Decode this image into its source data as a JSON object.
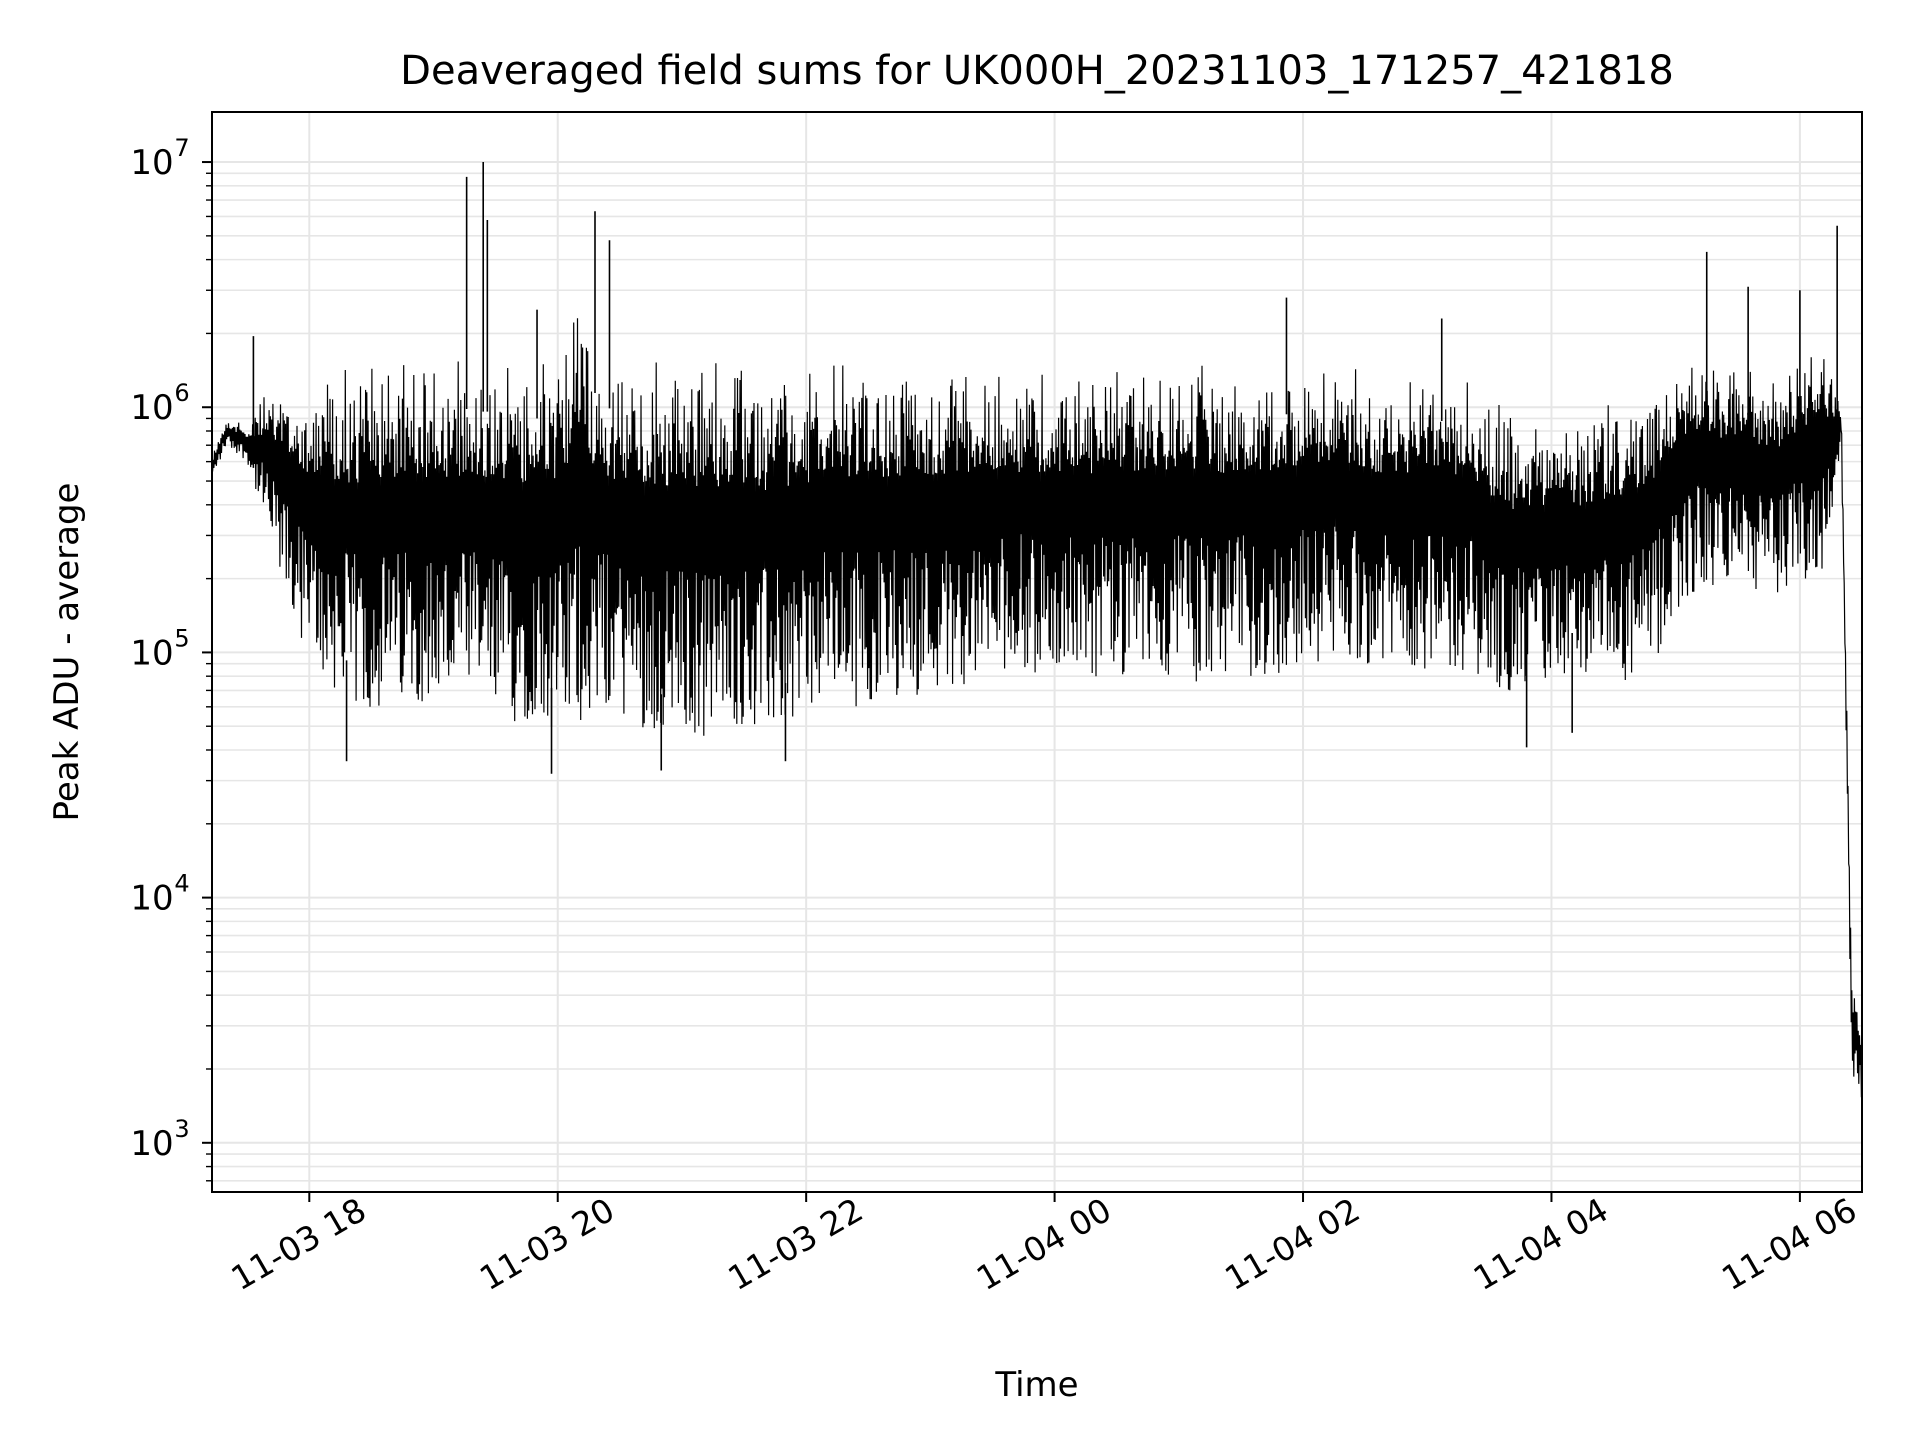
{
  "chart_data": {
    "type": "line",
    "title": "Deaveraged field sums for UK000H_20231103_171257_421818",
    "xlabel": "Time",
    "ylabel": "Peak ADU - average",
    "yscale": "log",
    "xlim": [
      "2023-11-03 17:13",
      "2023-11-04 06:30"
    ],
    "ylim": [
      630,
      16000000
    ],
    "grid": true,
    "line_color": "#000000",
    "grid_color": "#e6e6e6",
    "x_ticks": [
      {
        "value": "2023-11-03 18:00",
        "label": "11-03 18"
      },
      {
        "value": "2023-11-03 20:00",
        "label": "11-03 20"
      },
      {
        "value": "2023-11-03 22:00",
        "label": "11-03 22"
      },
      {
        "value": "2023-11-04 00:00",
        "label": "11-04 00"
      },
      {
        "value": "2023-11-04 02:00",
        "label": "11-04 02"
      },
      {
        "value": "2023-11-04 04:00",
        "label": "11-04 04"
      },
      {
        "value": "2023-11-04 06:00",
        "label": "11-04 06"
      }
    ],
    "y_ticks": [
      {
        "value": 1000,
        "base": "10",
        "exp": "3"
      },
      {
        "value": 10000,
        "base": "10",
        "exp": "4"
      },
      {
        "value": 100000,
        "base": "10",
        "exp": "5"
      },
      {
        "value": 1000000,
        "base": "10",
        "exp": "6"
      },
      {
        "value": 10000000,
        "base": "10",
        "exp": "7"
      }
    ],
    "series": [
      {
        "name": "",
        "x": [
          "2023-11-03 17:13",
          "2023-11-03 17:20",
          "2023-11-03 17:30",
          "2023-11-03 17:40",
          "2023-11-03 17:50",
          "2023-11-03 18:00",
          "2023-11-03 18:10",
          "2023-11-03 18:20",
          "2023-11-03 18:30",
          "2023-11-03 18:40",
          "2023-11-03 18:50",
          "2023-11-03 19:00",
          "2023-11-03 19:10",
          "2023-11-03 19:20",
          "2023-11-03 19:30",
          "2023-11-03 19:40",
          "2023-11-03 19:50",
          "2023-11-03 20:00",
          "2023-11-03 20:10",
          "2023-11-03 20:20",
          "2023-11-03 20:30",
          "2023-11-03 20:40",
          "2023-11-03 20:50",
          "2023-11-03 21:00",
          "2023-11-03 21:10",
          "2023-11-03 21:20",
          "2023-11-03 21:30",
          "2023-11-03 21:40",
          "2023-11-03 21:50",
          "2023-11-03 22:00",
          "2023-11-03 22:10",
          "2023-11-03 22:20",
          "2023-11-03 22:30",
          "2023-11-03 22:40",
          "2023-11-03 22:50",
          "2023-11-03 23:00",
          "2023-11-03 23:10",
          "2023-11-03 23:20",
          "2023-11-03 23:30",
          "2023-11-03 23:40",
          "2023-11-03 23:50",
          "2023-11-04 00:00",
          "2023-11-04 00:10",
          "2023-11-04 00:20",
          "2023-11-04 00:30",
          "2023-11-04 00:40",
          "2023-11-04 00:50",
          "2023-11-04 01:00",
          "2023-11-04 01:10",
          "2023-11-04 01:20",
          "2023-11-04 01:30",
          "2023-11-04 01:40",
          "2023-11-04 01:50",
          "2023-11-04 02:00",
          "2023-11-04 02:10",
          "2023-11-04 02:20",
          "2023-11-04 02:30",
          "2023-11-04 02:40",
          "2023-11-04 02:50",
          "2023-11-04 03:00",
          "2023-11-04 03:10",
          "2023-11-04 03:20",
          "2023-11-04 03:30",
          "2023-11-04 03:40",
          "2023-11-04 03:50",
          "2023-11-04 04:00",
          "2023-11-04 04:10",
          "2023-11-04 04:20",
          "2023-11-04 04:30",
          "2023-11-04 04:40",
          "2023-11-04 04:50",
          "2023-11-04 05:00",
          "2023-11-04 05:10",
          "2023-11-04 05:20",
          "2023-11-04 05:30",
          "2023-11-04 05:40",
          "2023-11-04 05:50",
          "2023-11-04 06:00",
          "2023-11-04 06:10",
          "2023-11-04 06:15",
          "2023-11-04 06:20",
          "2023-11-04 06:25",
          "2023-11-04 06:30"
        ],
        "y_low": [
          500000,
          700000,
          600000,
          300000,
          150000,
          90000,
          70000,
          60000,
          55000,
          60000,
          65000,
          60000,
          60000,
          60000,
          55000,
          50000,
          55000,
          45000,
          50000,
          60000,
          55000,
          50000,
          45000,
          45000,
          45000,
          48000,
          50000,
          45000,
          50000,
          55000,
          60000,
          60000,
          60000,
          65000,
          65000,
          70000,
          70000,
          75000,
          75000,
          90000,
          80000,
          80000,
          85000,
          80000,
          75000,
          75000,
          80000,
          80000,
          75000,
          75000,
          80000,
          75000,
          80000,
          90000,
          90000,
          95000,
          90000,
          85000,
          90000,
          85000,
          80000,
          85000,
          75000,
          65000,
          70000,
          75000,
          80000,
          75000,
          70000,
          75000,
          85000,
          150000,
          170000,
          180000,
          200000,
          170000,
          170000,
          200000,
          200000,
          350000,
          700000,
          2000,
          1400
        ],
        "y_high": [
          650000,
          900000,
          850000,
          1200000,
          1300000,
          1400000,
          1500000,
          1500000,
          1600000,
          1600000,
          1600000,
          1600000,
          1700000,
          1600000,
          1600000,
          1600000,
          1500000,
          1600000,
          3000000,
          1700000,
          1600000,
          1600000,
          1600000,
          1650000,
          1600000,
          1600000,
          1600000,
          1550000,
          1600000,
          1600000,
          1550000,
          1600000,
          1600000,
          1600000,
          1550000,
          1550000,
          1500000,
          1500000,
          1500000,
          1450000,
          1400000,
          1400000,
          1450000,
          1500000,
          1500000,
          1550000,
          1550000,
          1600000,
          1600000,
          1550000,
          1550000,
          1500000,
          1550000,
          1600000,
          1600000,
          1500000,
          1500000,
          1400000,
          1400000,
          1500000,
          1450000,
          1400000,
          1100000,
          1000000,
          950000,
          900000,
          900000,
          950000,
          1100000,
          1200000,
          1300000,
          1700000,
          1800000,
          1600000,
          1600000,
          1500000,
          1400000,
          1700000,
          2000000,
          1500000,
          1000000,
          5000,
          3000
        ],
        "spikes": [
          {
            "x": "2023-11-03 17:33",
            "y": 1950000
          },
          {
            "x": "2023-11-03 19:16",
            "y": 8700000
          },
          {
            "x": "2023-11-03 19:24",
            "y": 10000000
          },
          {
            "x": "2023-11-03 19:26",
            "y": 5800000
          },
          {
            "x": "2023-11-03 19:50",
            "y": 2500000
          },
          {
            "x": "2023-11-03 20:18",
            "y": 6300000
          },
          {
            "x": "2023-11-03 20:25",
            "y": 4800000
          },
          {
            "x": "2023-11-04 01:52",
            "y": 2800000
          },
          {
            "x": "2023-11-04 03:07",
            "y": 2300000
          },
          {
            "x": "2023-11-04 05:15",
            "y": 4300000
          },
          {
            "x": "2023-11-04 05:35",
            "y": 3100000
          },
          {
            "x": "2023-11-04 06:00",
            "y": 3000000
          },
          {
            "x": "2023-11-04 06:18",
            "y": 5500000
          }
        ],
        "dips": [
          {
            "x": "2023-11-03 18:18",
            "y": 36000
          },
          {
            "x": "2023-11-03 19:57",
            "y": 32000
          },
          {
            "x": "2023-11-03 20:50",
            "y": 33000
          },
          {
            "x": "2023-11-03 21:50",
            "y": 36000
          },
          {
            "x": "2023-11-04 03:48",
            "y": 41000
          },
          {
            "x": "2023-11-04 04:10",
            "y": 47000
          }
        ]
      }
    ]
  }
}
